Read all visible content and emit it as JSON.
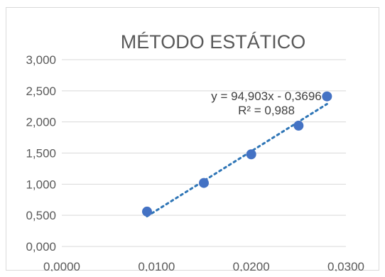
{
  "chart_data": {
    "type": "scatter",
    "title": "MÉTODO ESTÁTICO",
    "xlabel": "",
    "ylabel": "",
    "xlim": [
      0,
      0.03
    ],
    "ylim": [
      0,
      3
    ],
    "x_ticks": [
      "0,0000",
      "0,0100",
      "0,0200",
      "0,0300"
    ],
    "y_ticks": [
      "0,000",
      "0,500",
      "1,000",
      "1,500",
      "2,000",
      "2,500",
      "3,000"
    ],
    "grid": "horizontal",
    "legend": "none",
    "series": [
      {
        "x": [
          0.009,
          0.015,
          0.02,
          0.025,
          0.028
        ],
        "y": [
          0.56,
          1.02,
          1.48,
          1.94,
          2.41
        ]
      }
    ],
    "trendline": {
      "type": "linear",
      "slope": 94.903,
      "intercept": -0.3696,
      "equation": "y = 94,903x - 0,3696",
      "r_squared": "R² = 0,988"
    },
    "colors": {
      "marker": "#4472c4",
      "trendline": "#2e75b6",
      "gridline": "#d9d9d9",
      "text": "#595959"
    }
  }
}
